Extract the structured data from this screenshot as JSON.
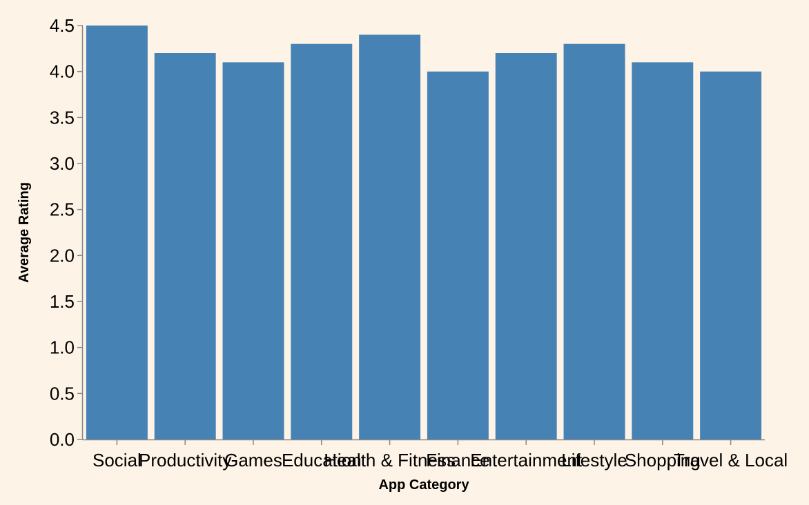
{
  "colors": {
    "background": "#fdf3e6",
    "bar": "#4682b4",
    "axis": "#888888"
  },
  "chart_data": {
    "type": "bar",
    "title": "",
    "xlabel": "App Category",
    "ylabel": "Average Rating",
    "ylim": [
      0,
      4.5
    ],
    "yticks": [
      "0.0",
      "0.5",
      "1.0",
      "1.5",
      "2.0",
      "2.5",
      "3.0",
      "3.5",
      "4.0",
      "4.5"
    ],
    "grid": false,
    "categories": [
      "Social",
      "Productivity",
      "Games",
      "Education",
      "Health & Fitness",
      "Finance",
      "Entertainment",
      "Lifestyle",
      "Shopping",
      "Travel & Local"
    ],
    "values": [
      4.5,
      4.2,
      4.1,
      4.3,
      4.4,
      4.0,
      4.2,
      4.3,
      4.1,
      4.0
    ]
  }
}
